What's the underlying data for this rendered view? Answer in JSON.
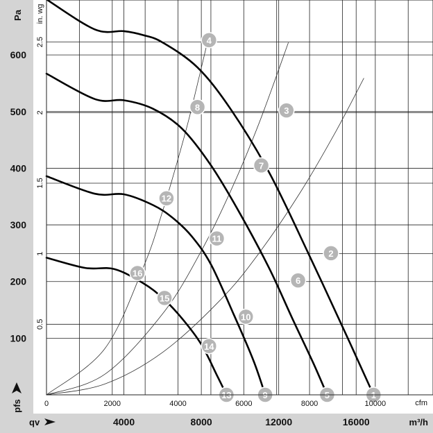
{
  "chart_data": {
    "type": "line",
    "title": "",
    "x_primary": {
      "unit": "m³/h",
      "range": [
        0,
        19000
      ],
      "ticks": [
        4000,
        8000,
        12000,
        16000
      ]
    },
    "x_secondary": {
      "unit": "cfm",
      "range": [
        0,
        11180
      ],
      "ticks": [
        0,
        2000,
        4000,
        6000,
        8000,
        10000
      ]
    },
    "y_primary": {
      "unit": "Pa",
      "range": [
        0,
        700
      ],
      "ticks": [
        100,
        200,
        300,
        400,
        500,
        600
      ]
    },
    "y_secondary": {
      "unit": "in. wg",
      "ticks": [
        "0.5",
        "1",
        "1.5",
        "2",
        "2.5"
      ]
    },
    "x_axis_symbol": "qv",
    "y_axis_symbol": "pfs",
    "grid": true,
    "series": [
      {
        "points": [
          [
            0,
            698
          ],
          [
            2500,
            645
          ],
          [
            4000,
            642
          ],
          [
            5000,
            635
          ],
          [
            6000,
            622
          ],
          [
            7800,
            578
          ],
          [
            9500,
            505
          ],
          [
            11500,
            393
          ],
          [
            13500,
            252
          ],
          [
            15500,
            105
          ],
          [
            16900,
            0
          ]
        ]
      },
      {
        "points": [
          [
            0,
            567
          ],
          [
            2500,
            522
          ],
          [
            4000,
            520
          ],
          [
            5500,
            505
          ],
          [
            7000,
            470
          ],
          [
            8500,
            405
          ],
          [
            10000,
            320
          ],
          [
            11500,
            224
          ],
          [
            12700,
            135
          ],
          [
            13800,
            55
          ],
          [
            14500,
            0
          ]
        ]
      },
      {
        "points": [
          [
            0,
            386
          ],
          [
            2500,
            355
          ],
          [
            4000,
            354
          ],
          [
            5500,
            335
          ],
          [
            6500,
            313
          ],
          [
            7500,
            280
          ],
          [
            8500,
            230
          ],
          [
            9700,
            140
          ],
          [
            10700,
            60
          ],
          [
            11300,
            0
          ]
        ]
      },
      {
        "points": [
          [
            0,
            242
          ],
          [
            2000,
            224
          ],
          [
            3500,
            222
          ],
          [
            5000,
            197
          ],
          [
            6000,
            171
          ],
          [
            7000,
            135
          ],
          [
            8000,
            89
          ],
          [
            8800,
            35
          ],
          [
            9300,
            0
          ]
        ]
      }
    ],
    "system_curves": [
      {
        "points": [
          [
            0,
            0
          ],
          [
            3000,
            19
          ],
          [
            6000,
            75
          ],
          [
            9000,
            168
          ],
          [
            11000,
            251
          ],
          [
            13200,
            362
          ],
          [
            15000,
            468
          ],
          [
            16400,
            559
          ]
        ]
      },
      {
        "points": [
          [
            0,
            0
          ],
          [
            3000,
            36
          ],
          [
            6000,
            143
          ],
          [
            8000,
            254
          ],
          [
            9600,
            366
          ],
          [
            11000,
            481
          ],
          [
            12500,
            622
          ]
        ]
      },
      {
        "points": [
          [
            0,
            0
          ],
          [
            3000,
            81
          ],
          [
            5000,
            225
          ],
          [
            6000,
            324
          ],
          [
            7000,
            441
          ],
          [
            7500,
            506
          ],
          [
            8400,
            635
          ]
        ]
      }
    ],
    "markers": [
      {
        "label": "1",
        "x": 16900,
        "y": 0
      },
      {
        "label": "2",
        "x": 14700,
        "y": 250
      },
      {
        "label": "3",
        "x": 12400,
        "y": 502
      },
      {
        "label": "4",
        "x": 8400,
        "y": 626
      },
      {
        "label": "5",
        "x": 14500,
        "y": 0
      },
      {
        "label": "6",
        "x": 13000,
        "y": 202
      },
      {
        "label": "7",
        "x": 11100,
        "y": 405
      },
      {
        "label": "8",
        "x": 7800,
        "y": 508
      },
      {
        "label": "9",
        "x": 11300,
        "y": 0
      },
      {
        "label": "10",
        "x": 10300,
        "y": 138
      },
      {
        "label": "11",
        "x": 8800,
        "y": 276
      },
      {
        "label": "12",
        "x": 6200,
        "y": 347
      },
      {
        "label": "13",
        "x": 9300,
        "y": 0
      },
      {
        "label": "14",
        "x": 8400,
        "y": 86
      },
      {
        "label": "15",
        "x": 6100,
        "y": 171
      },
      {
        "label": "16",
        "x": 4700,
        "y": 215
      }
    ]
  }
}
